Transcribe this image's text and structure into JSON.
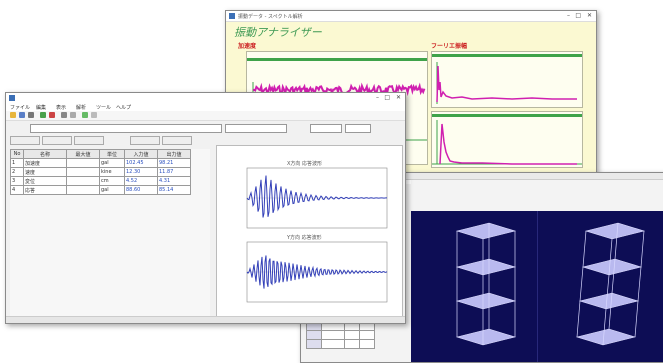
{
  "spectrum_window": {
    "title": "振動データ - スペクトル解析",
    "heading": "振動アナライザー",
    "label_left": "加速度",
    "label_right": "フーリエ振幅"
  },
  "analysis_window": {
    "title": "",
    "menu": [
      "ファイル",
      "編集",
      "表示",
      "解析",
      "ツール",
      "ヘルプ"
    ],
    "columns": [
      "No",
      "名称",
      "最大値",
      "単位",
      "入力値",
      "出力値"
    ],
    "rows": [
      [
        "1",
        "加速度",
        "",
        "gal",
        "102.45",
        "98.21"
      ],
      [
        "2",
        "速度",
        "",
        "kine",
        "12.30",
        "11.87"
      ],
      [
        "3",
        "変位",
        "",
        "cm",
        "4.52",
        "4.31"
      ],
      [
        "4",
        "応答",
        "",
        "gal",
        "88.60",
        "85.14"
      ]
    ],
    "graph1_title": "X方向 応答波形",
    "graph2_title": "Y方向 応答波形"
  },
  "viewer_window": {
    "title": ""
  },
  "colors": {
    "signal": "#d020b0",
    "wave": "#3340b8",
    "grid_line": "#3fa34a",
    "view_bg": "#0d0d55"
  }
}
